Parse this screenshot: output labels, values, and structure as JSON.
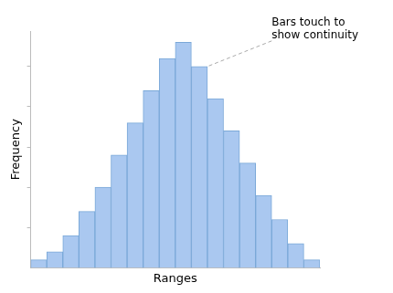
{
  "chart_data": {
    "type": "bar",
    "categories": [
      null,
      null,
      null,
      null,
      null,
      null,
      null,
      null,
      null,
      null,
      null,
      null,
      null,
      null,
      null,
      null,
      null,
      null
    ],
    "values": [
      1,
      2,
      4,
      7,
      10,
      14,
      18,
      22,
      26,
      28,
      25,
      21,
      17,
      13,
      9,
      6,
      3,
      1
    ],
    "color": "#aac8f0",
    "xlabel": "Ranges",
    "ylabel": "Frequency",
    "ylim": [
      0,
      29.4
    ],
    "yticks": [
      5,
      10,
      15,
      20,
      25
    ],
    "grid": false,
    "tick_labels": false,
    "annotations": [
      "Bars touch to\nshow continuity"
    ]
  }
}
